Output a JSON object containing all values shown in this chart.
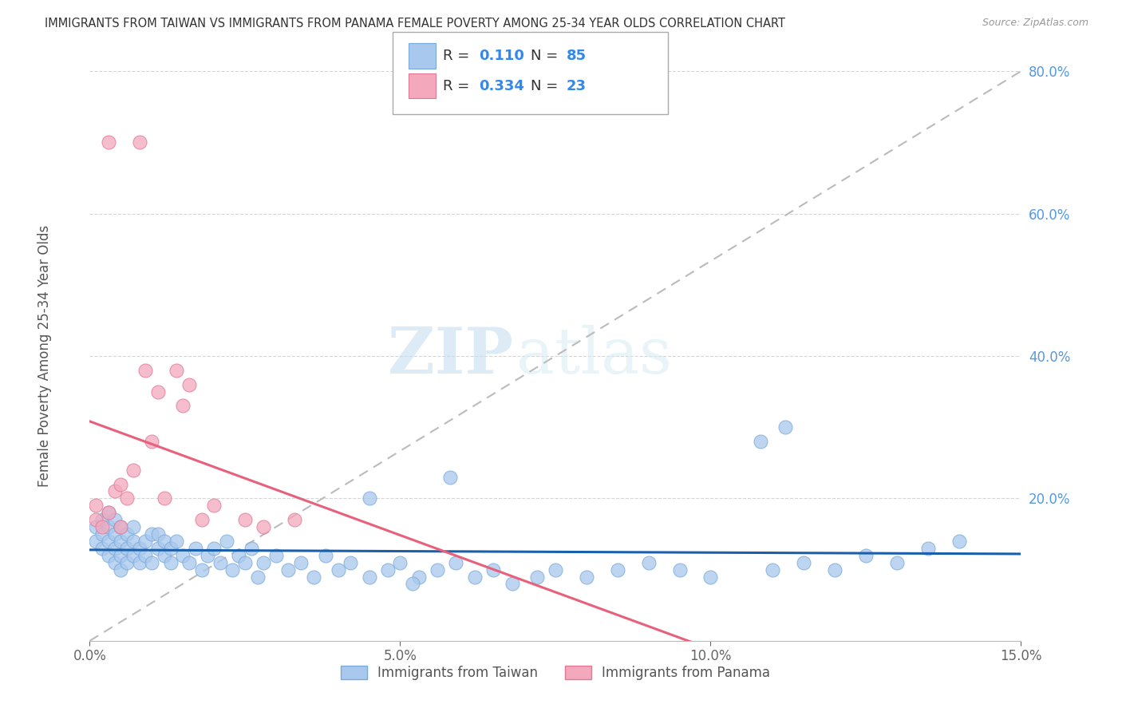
{
  "title": "IMMIGRANTS FROM TAIWAN VS IMMIGRANTS FROM PANAMA FEMALE POVERTY AMONG 25-34 YEAR OLDS CORRELATION CHART",
  "source": "Source: ZipAtlas.com",
  "ylabel": "Female Poverty Among 25-34 Year Olds",
  "xlim": [
    0.0,
    0.15
  ],
  "ylim": [
    0.0,
    0.8
  ],
  "xticks": [
    0.0,
    0.05,
    0.1,
    0.15
  ],
  "xticklabels": [
    "0.0%",
    "5.0%",
    "10.0%",
    "15.0%"
  ],
  "yticks": [
    0.0,
    0.2,
    0.4,
    0.6,
    0.8
  ],
  "yticklabels": [
    "",
    "20.0%",
    "40.0%",
    "60.0%",
    "80.0%"
  ],
  "taiwan_color": "#A8C8EE",
  "panama_color": "#F4A8BC",
  "taiwan_edge": "#7AAAD8",
  "panama_edge": "#E07898",
  "trend_taiwan_color": "#1A5FAA",
  "trend_panama_color": "#E8607A",
  "diag_color": "#BBBBBB",
  "R_taiwan": 0.11,
  "N_taiwan": 85,
  "R_panama": 0.334,
  "N_panama": 23,
  "legend_taiwan": "Immigrants from Taiwan",
  "legend_panama": "Immigrants from Panama",
  "watermark_zip": "ZIP",
  "watermark_atlas": "atlas",
  "taiwan_x": [
    0.001,
    0.001,
    0.002,
    0.002,
    0.002,
    0.003,
    0.003,
    0.003,
    0.003,
    0.004,
    0.004,
    0.004,
    0.004,
    0.005,
    0.005,
    0.005,
    0.005,
    0.006,
    0.006,
    0.006,
    0.007,
    0.007,
    0.007,
    0.008,
    0.008,
    0.009,
    0.009,
    0.01,
    0.01,
    0.011,
    0.011,
    0.012,
    0.012,
    0.013,
    0.013,
    0.014,
    0.015,
    0.016,
    0.017,
    0.018,
    0.019,
    0.02,
    0.021,
    0.022,
    0.023,
    0.024,
    0.025,
    0.026,
    0.027,
    0.028,
    0.03,
    0.032,
    0.034,
    0.036,
    0.038,
    0.04,
    0.042,
    0.045,
    0.048,
    0.05,
    0.053,
    0.056,
    0.059,
    0.062,
    0.065,
    0.068,
    0.072,
    0.075,
    0.08,
    0.085,
    0.09,
    0.095,
    0.1,
    0.11,
    0.115,
    0.12,
    0.125,
    0.13,
    0.135,
    0.14,
    0.045,
    0.052,
    0.058,
    0.108,
    0.112
  ],
  "taiwan_y": [
    0.16,
    0.14,
    0.13,
    0.15,
    0.17,
    0.12,
    0.14,
    0.16,
    0.18,
    0.11,
    0.15,
    0.13,
    0.17,
    0.12,
    0.16,
    0.14,
    0.1,
    0.15,
    0.13,
    0.11,
    0.14,
    0.12,
    0.16,
    0.13,
    0.11,
    0.14,
    0.12,
    0.15,
    0.11,
    0.13,
    0.15,
    0.12,
    0.14,
    0.11,
    0.13,
    0.14,
    0.12,
    0.11,
    0.13,
    0.1,
    0.12,
    0.13,
    0.11,
    0.14,
    0.1,
    0.12,
    0.11,
    0.13,
    0.09,
    0.11,
    0.12,
    0.1,
    0.11,
    0.09,
    0.12,
    0.1,
    0.11,
    0.09,
    0.1,
    0.11,
    0.09,
    0.1,
    0.11,
    0.09,
    0.1,
    0.08,
    0.09,
    0.1,
    0.09,
    0.1,
    0.11,
    0.1,
    0.09,
    0.1,
    0.11,
    0.1,
    0.12,
    0.11,
    0.13,
    0.14,
    0.2,
    0.08,
    0.23,
    0.28,
    0.3
  ],
  "panama_x": [
    0.001,
    0.001,
    0.002,
    0.003,
    0.003,
    0.004,
    0.005,
    0.005,
    0.006,
    0.007,
    0.008,
    0.009,
    0.01,
    0.011,
    0.012,
    0.014,
    0.015,
    0.016,
    0.018,
    0.02,
    0.025,
    0.028,
    0.033
  ],
  "panama_y": [
    0.17,
    0.19,
    0.16,
    0.7,
    0.18,
    0.21,
    0.16,
    0.22,
    0.2,
    0.24,
    0.7,
    0.38,
    0.28,
    0.35,
    0.2,
    0.38,
    0.33,
    0.36,
    0.17,
    0.19,
    0.17,
    0.16,
    0.17
  ]
}
